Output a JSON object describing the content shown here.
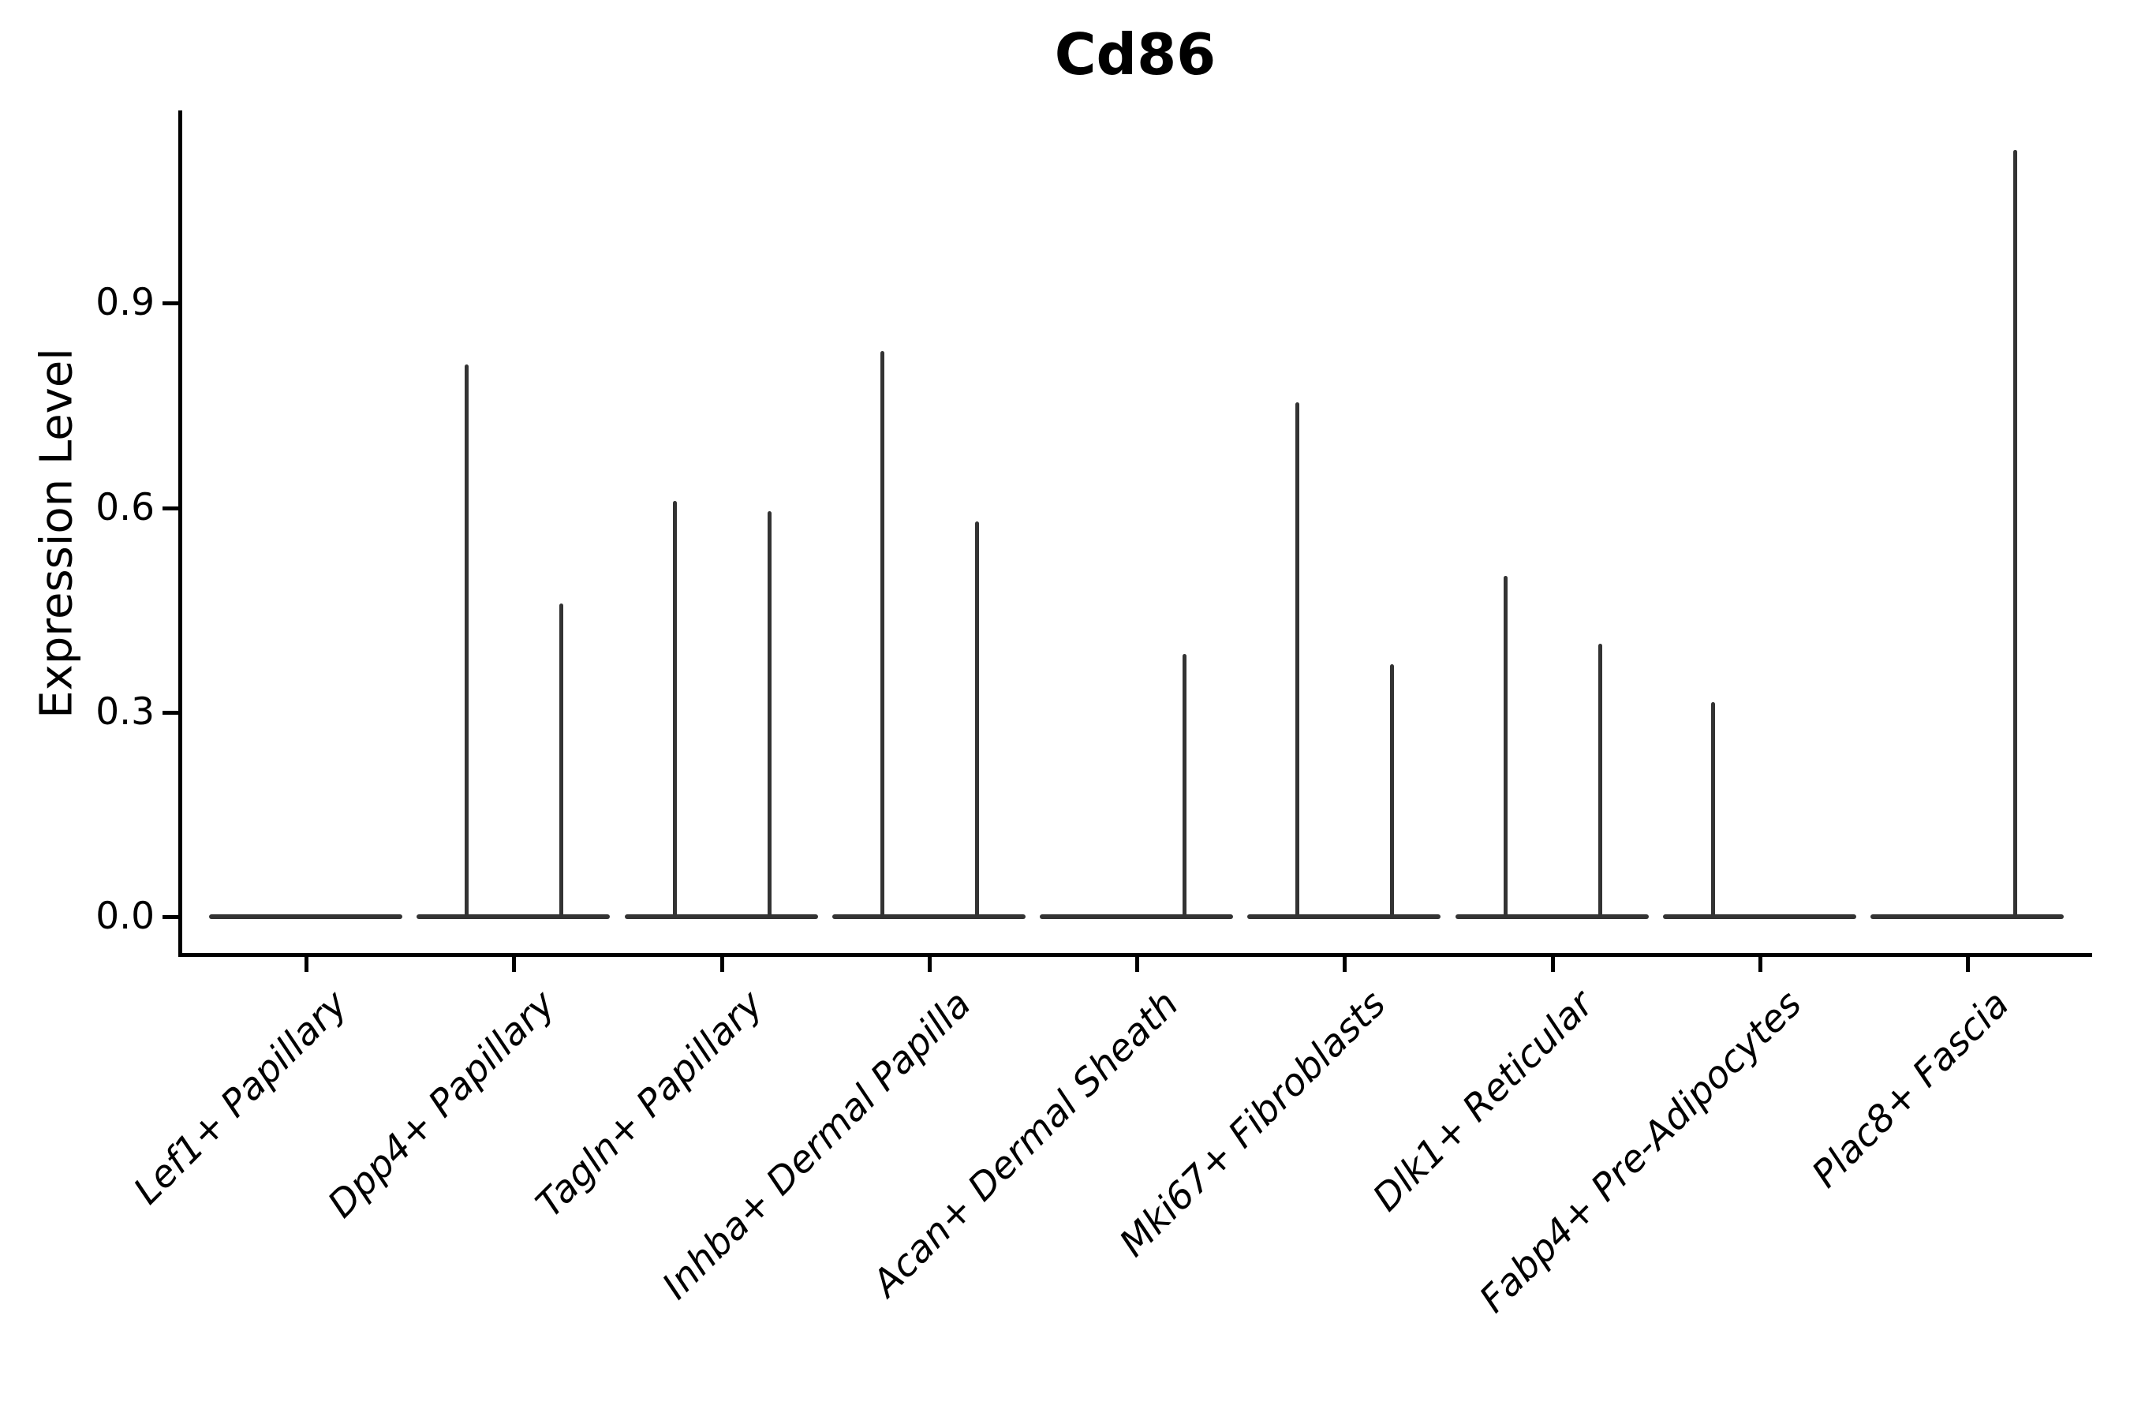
{
  "title": "Cd86",
  "y_axis": {
    "label": "Expression Level",
    "tick_labels": [
      "0.0",
      "0.3",
      "0.6",
      "0.9"
    ]
  },
  "chart_data": {
    "type": "violin",
    "title": "Cd86",
    "ylabel": "Expression Level",
    "xlabel": "",
    "ylim": [
      0,
      1.19
    ],
    "y_ticks": [
      0.0,
      0.3,
      0.6,
      0.9
    ],
    "y_tick_labels": [
      "0.0",
      "0.3",
      "0.6",
      "0.9"
    ],
    "grid": false,
    "legend": "none",
    "style": "thin-spike violin plot; every category shows a flat near-zero-width violin body lying on y=0 plus up to two narrow vertical density spikes (a left and a right sub-violin per category) reaching the maximum expression value",
    "categories": [
      "Lef1+ Papillary",
      "Dpp4+ Papillary",
      "Tagln+ Papillary",
      "Inhba+ Dermal Papilla",
      "Acan+ Dermal Sheath",
      "Mki67+ Fibroblasts",
      "Dlk1+ Reticular",
      "Fabp4+ Pre-Adipocytes",
      "Plac8+ Fascia"
    ],
    "series": [
      {
        "name": "left-sub-violin-spike-max",
        "values": [
          null,
          0.81,
          0.61,
          0.83,
          null,
          0.755,
          0.5,
          0.315,
          null
        ]
      },
      {
        "name": "right-sub-violin-spike-max",
        "values": [
          null,
          0.46,
          0.595,
          0.58,
          0.385,
          0.37,
          0.4,
          null,
          1.125
        ]
      }
    ],
    "colors": {
      "violin": "#333333",
      "axis": "#000000",
      "text": "#000000",
      "background": "#ffffff"
    }
  }
}
